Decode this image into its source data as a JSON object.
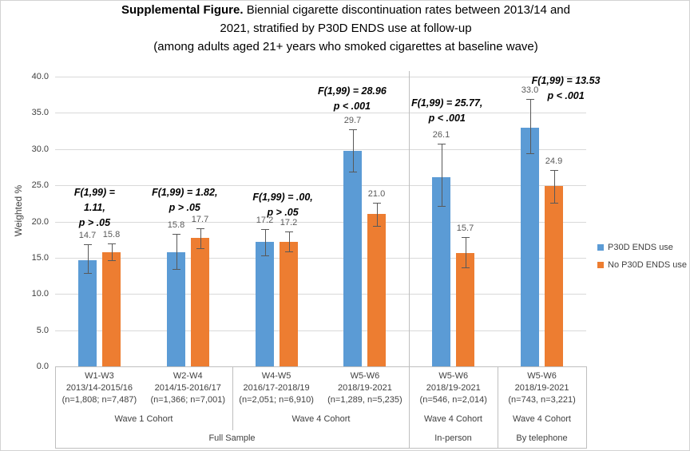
{
  "title": {
    "line1_bold": "Supplemental Figure.",
    "line1_rest": " Biennial cigarette discontinuation rates between 2013/14 and",
    "line2": "2021, stratified by P30D ENDS use at follow-up",
    "line3": "(among adults aged 21+ years who smoked cigarettes at baseline wave)"
  },
  "legend": {
    "items": [
      {
        "label": "P30D ENDS use",
        "color": "#5B9BD5"
      },
      {
        "label": "No P30D ENDS use",
        "color": "#ED7D31"
      }
    ]
  },
  "chart_data": {
    "type": "bar",
    "title": "Supplemental Figure. Biennial cigarette discontinuation rates between 2013/14 and 2021, stratified by P30D ENDS use at follow-up (among adults aged 21+ years who smoked cigarettes at baseline wave)",
    "ylabel": "Weighted %",
    "xlabel": "",
    "ylim": [
      0,
      40
    ],
    "ytick_step": 5,
    "ytick_labels": [
      "0.0",
      "5.0",
      "10.0",
      "15.0",
      "20.0",
      "25.0",
      "30.0",
      "35.0",
      "40.0"
    ],
    "grid": true,
    "legend_position": "right",
    "series": [
      {
        "name": "P30D ENDS use",
        "color": "#5B9BD5",
        "values": [
          14.7,
          15.8,
          17.2,
          29.7,
          26.1,
          33.0
        ],
        "error_low": [
          12.9,
          13.4,
          15.3,
          26.9,
          22.2,
          29.4
        ],
        "error_high": [
          16.9,
          18.3,
          18.9,
          32.7,
          30.7,
          36.9
        ]
      },
      {
        "name": "No P30D ENDS use",
        "color": "#ED7D31",
        "values": [
          15.8,
          17.7,
          17.2,
          21.0,
          15.7,
          24.9
        ],
        "error_low": [
          14.7,
          16.3,
          15.9,
          19.4,
          13.7,
          22.6
        ],
        "error_high": [
          17.0,
          19.1,
          18.6,
          22.6,
          17.9,
          27.1
        ]
      }
    ],
    "categories": [
      {
        "lines": [
          "W1-W3",
          "2013/14-2015/16",
          "(n=1,808; n=7,487)"
        ]
      },
      {
        "lines": [
          "W2-W4",
          "2014/15-2016/17",
          "(n=1,366; n=7,001)"
        ]
      },
      {
        "lines": [
          "W4-W5",
          "2016/17-2018/19",
          "(n=2,051; n=6,910)"
        ]
      },
      {
        "lines": [
          "W5-W6",
          "2018/19-2021",
          "(n=1,289, n=5,235)"
        ]
      },
      {
        "lines": [
          "W5-W6",
          "2018/19-2021",
          "(n=546, n=2,014)"
        ]
      },
      {
        "lines": [
          "W5-W6",
          "2018/19-2021",
          "(n=743, n=3,221)"
        ]
      }
    ],
    "group_labels_level2": [
      {
        "label": "Wave 1 Cohort",
        "span": [
          0,
          1
        ]
      },
      {
        "label": "Wave 4 Cohort",
        "span": [
          2,
          3
        ]
      },
      {
        "label": "Wave 4 Cohort",
        "span": [
          4,
          4
        ]
      },
      {
        "label": "Wave 4 Cohort",
        "span": [
          5,
          5
        ]
      }
    ],
    "group_labels_level3": [
      {
        "label": "Full Sample",
        "span": [
          0,
          3
        ]
      },
      {
        "label": "In-person",
        "span": [
          4,
          4
        ]
      },
      {
        "label": "By telephone",
        "span": [
          5,
          5
        ]
      }
    ],
    "annotations": [
      {
        "category": 0,
        "lines": [
          "F(1,99) =",
          "1.11,",
          "p > .05"
        ]
      },
      {
        "category": 1,
        "lines": [
          "F(1,99) = 1.82,",
          "p > .05"
        ]
      },
      {
        "category": 2,
        "lines": [
          "F(1,99) = .00,",
          "p > .05"
        ]
      },
      {
        "category": 3,
        "lines": [
          "F(1,99) = 28.96",
          "p < .001"
        ]
      },
      {
        "category": 4,
        "lines": [
          "F(1,99) = 25.77,",
          "p < .001"
        ]
      },
      {
        "category": 5,
        "lines": [
          "F(1,99) = 13.53",
          "p < .001"
        ]
      }
    ],
    "separator_after_category": 3
  }
}
